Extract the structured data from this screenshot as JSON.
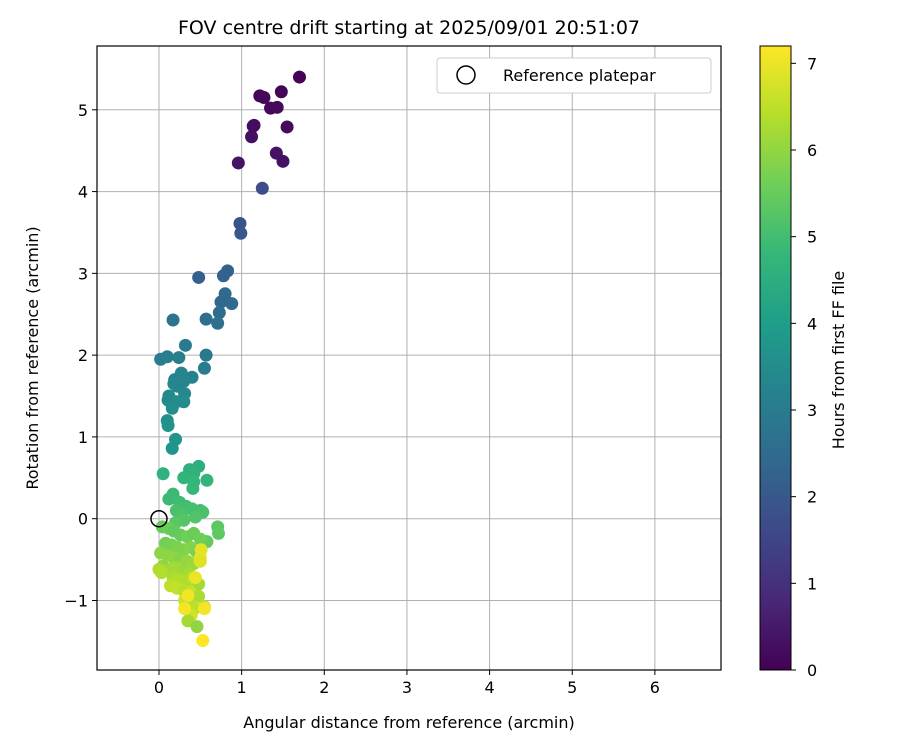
{
  "chart_data": {
    "type": "scatter",
    "title": "FOV centre drift starting at 2025/09/01 20:51:07",
    "xlabel": "Angular distance from reference (arcmin)",
    "ylabel": "Rotation from reference (arcmin)",
    "xlim": [
      -0.75,
      6.8
    ],
    "ylim": [
      -1.85,
      5.78
    ],
    "xticks": [
      0,
      1,
      2,
      3,
      4,
      5,
      6
    ],
    "yticks": [
      -1,
      0,
      1,
      2,
      3,
      4,
      5
    ],
    "xtick_labels": [
      "0",
      "1",
      "2",
      "3",
      "4",
      "5",
      "6"
    ],
    "ytick_labels": [
      "−1",
      "0",
      "1",
      "2",
      "3",
      "4",
      "5"
    ],
    "grid": true,
    "legend": {
      "position": "top-right",
      "entries": [
        {
          "label": "Reference platepar",
          "marker": "open-circle",
          "x": 0,
          "y": 0
        }
      ]
    },
    "colorbar": {
      "label": "Hours from first FF file",
      "min": 0,
      "max": 7.2,
      "ticks": [
        0,
        1,
        2,
        3,
        4,
        5,
        6,
        7
      ],
      "tick_labels": [
        "0",
        "1",
        "2",
        "3",
        "4",
        "5",
        "6",
        "7"
      ],
      "colormap": "viridis",
      "colors": [
        "#440154",
        "#482878",
        "#3e4989",
        "#31688e",
        "#26828e",
        "#1f9e89",
        "#35b779",
        "#6ece58",
        "#b5de2b",
        "#fde725"
      ]
    },
    "points": [
      [
        1.7,
        5.4,
        0.05
      ],
      [
        1.22,
        5.17,
        0.1
      ],
      [
        1.48,
        5.22,
        0.08
      ],
      [
        1.27,
        5.15,
        0.12
      ],
      [
        1.35,
        5.02,
        0.15
      ],
      [
        1.43,
        5.03,
        0.18
      ],
      [
        1.15,
        4.81,
        0.2
      ],
      [
        1.14,
        4.8,
        0.25
      ],
      [
        1.55,
        4.79,
        0.22
      ],
      [
        1.12,
        4.67,
        0.3
      ],
      [
        1.42,
        4.47,
        0.35
      ],
      [
        0.96,
        4.35,
        0.38
      ],
      [
        1.5,
        4.37,
        0.32
      ],
      [
        1.25,
        4.04,
        1.7
      ],
      [
        0.98,
        3.61,
        1.85
      ],
      [
        0.99,
        3.49,
        1.95
      ],
      [
        0.48,
        2.95,
        2.2
      ],
      [
        0.78,
        2.97,
        2.25
      ],
      [
        0.83,
        3.03,
        2.28
      ],
      [
        0.8,
        2.75,
        2.45
      ],
      [
        0.88,
        2.63,
        2.5
      ],
      [
        0.75,
        2.65,
        2.4
      ],
      [
        0.73,
        2.52,
        2.55
      ],
      [
        0.57,
        2.44,
        2.6
      ],
      [
        0.71,
        2.39,
        2.65
      ],
      [
        0.17,
        2.43,
        2.75
      ],
      [
        0.32,
        2.12,
        2.95
      ],
      [
        0.57,
        2.0,
        2.9
      ],
      [
        0.02,
        1.95,
        3.0
      ],
      [
        0.1,
        1.98,
        3.05
      ],
      [
        0.24,
        1.97,
        3.1
      ],
      [
        0.55,
        1.84,
        3.0
      ],
      [
        0.19,
        1.7,
        3.2
      ],
      [
        0.27,
        1.78,
        3.25
      ],
      [
        0.4,
        1.73,
        3.15
      ],
      [
        0.18,
        1.65,
        3.3
      ],
      [
        0.22,
        1.62,
        3.35
      ],
      [
        0.3,
        1.68,
        3.28
      ],
      [
        0.12,
        1.5,
        3.4
      ],
      [
        0.11,
        1.45,
        3.45
      ],
      [
        0.31,
        1.53,
        3.38
      ],
      [
        0.21,
        1.43,
        3.5
      ],
      [
        0.3,
        1.43,
        3.48
      ],
      [
        0.16,
        1.35,
        3.55
      ],
      [
        0.1,
        1.2,
        3.6
      ],
      [
        0.11,
        1.14,
        3.65
      ],
      [
        0.2,
        0.97,
        3.7
      ],
      [
        0.16,
        0.86,
        3.75
      ],
      [
        0.05,
        0.55,
        4.6
      ],
      [
        0.48,
        0.64,
        4.5
      ],
      [
        0.37,
        0.6,
        4.55
      ],
      [
        0.42,
        0.55,
        4.65
      ],
      [
        0.3,
        0.5,
        4.7
      ],
      [
        0.42,
        0.45,
        4.75
      ],
      [
        0.58,
        0.47,
        4.7
      ],
      [
        0.41,
        0.37,
        4.8
      ],
      [
        0.17,
        0.3,
        4.85
      ],
      [
        0.12,
        0.24,
        4.9
      ],
      [
        0.25,
        0.2,
        4.95
      ],
      [
        0.33,
        0.15,
        5.0
      ],
      [
        0.4,
        0.12,
        5.05
      ],
      [
        0.21,
        0.1,
        5.1
      ],
      [
        0.5,
        0.1,
        5.0
      ],
      [
        0.53,
        0.08,
        5.1
      ],
      [
        0.28,
        0.05,
        5.15
      ],
      [
        0.44,
        0.02,
        5.2
      ],
      [
        0.3,
        -0.02,
        5.25
      ],
      [
        0.2,
        -0.05,
        5.3
      ],
      [
        0.71,
        -0.1,
        5.35
      ],
      [
        0.72,
        -0.18,
        5.4
      ],
      [
        0.04,
        -0.1,
        5.5
      ],
      [
        0.12,
        -0.12,
        5.55
      ],
      [
        0.18,
        -0.15,
        5.45
      ],
      [
        0.26,
        -0.2,
        5.5
      ],
      [
        0.34,
        -0.22,
        5.6
      ],
      [
        0.42,
        -0.18,
        5.55
      ],
      [
        0.58,
        -0.28,
        5.45
      ],
      [
        0.5,
        -0.25,
        5.6
      ],
      [
        0.08,
        -0.3,
        5.65
      ],
      [
        0.15,
        -0.32,
        5.7
      ],
      [
        0.22,
        -0.35,
        5.75
      ],
      [
        0.3,
        -0.38,
        5.8
      ],
      [
        0.38,
        -0.35,
        5.85
      ],
      [
        0.45,
        -0.4,
        5.75
      ],
      [
        0.02,
        -0.42,
        5.9
      ],
      [
        0.1,
        -0.45,
        5.95
      ],
      [
        0.18,
        -0.48,
        6.0
      ],
      [
        0.26,
        -0.5,
        5.85
      ],
      [
        0.34,
        -0.52,
        6.05
      ],
      [
        0.42,
        -0.55,
        6.1
      ],
      [
        0.05,
        -0.58,
        6.0
      ],
      [
        0.13,
        -0.62,
        6.15
      ],
      [
        0.21,
        -0.6,
        6.2
      ],
      [
        0.29,
        -0.65,
        6.1
      ],
      [
        0.37,
        -0.68,
        6.25
      ],
      [
        0.0,
        -0.62,
        6.3
      ],
      [
        0.03,
        -0.66,
        6.35
      ],
      [
        0.17,
        -0.72,
        6.3
      ],
      [
        0.25,
        -0.75,
        6.4
      ],
      [
        0.33,
        -0.78,
        6.35
      ],
      [
        0.41,
        -0.72,
        6.45
      ],
      [
        0.48,
        -0.8,
        6.2
      ],
      [
        0.14,
        -0.82,
        6.5
      ],
      [
        0.22,
        -0.85,
        6.55
      ],
      [
        0.3,
        -0.88,
        6.45
      ],
      [
        0.38,
        -0.9,
        6.6
      ],
      [
        0.48,
        -0.95,
        6.3
      ],
      [
        0.31,
        -1.0,
        6.65
      ],
      [
        0.36,
        -1.05,
        6.4
      ],
      [
        0.43,
        -1.1,
        6.5
      ],
      [
        0.55,
        -1.08,
        6.55
      ],
      [
        0.39,
        -1.18,
        6.7
      ],
      [
        0.35,
        -1.25,
        6.2
      ],
      [
        0.46,
        -1.32,
        6.0
      ],
      [
        0.51,
        -0.38,
        6.9
      ],
      [
        0.5,
        -0.48,
        6.95
      ],
      [
        0.5,
        -0.52,
        6.85
      ],
      [
        0.44,
        -0.72,
        7.0
      ],
      [
        0.35,
        -0.94,
        7.05
      ],
      [
        0.31,
        -1.1,
        7.1
      ],
      [
        0.55,
        -1.1,
        7.1
      ],
      [
        0.53,
        -1.49,
        7.2
      ]
    ]
  }
}
